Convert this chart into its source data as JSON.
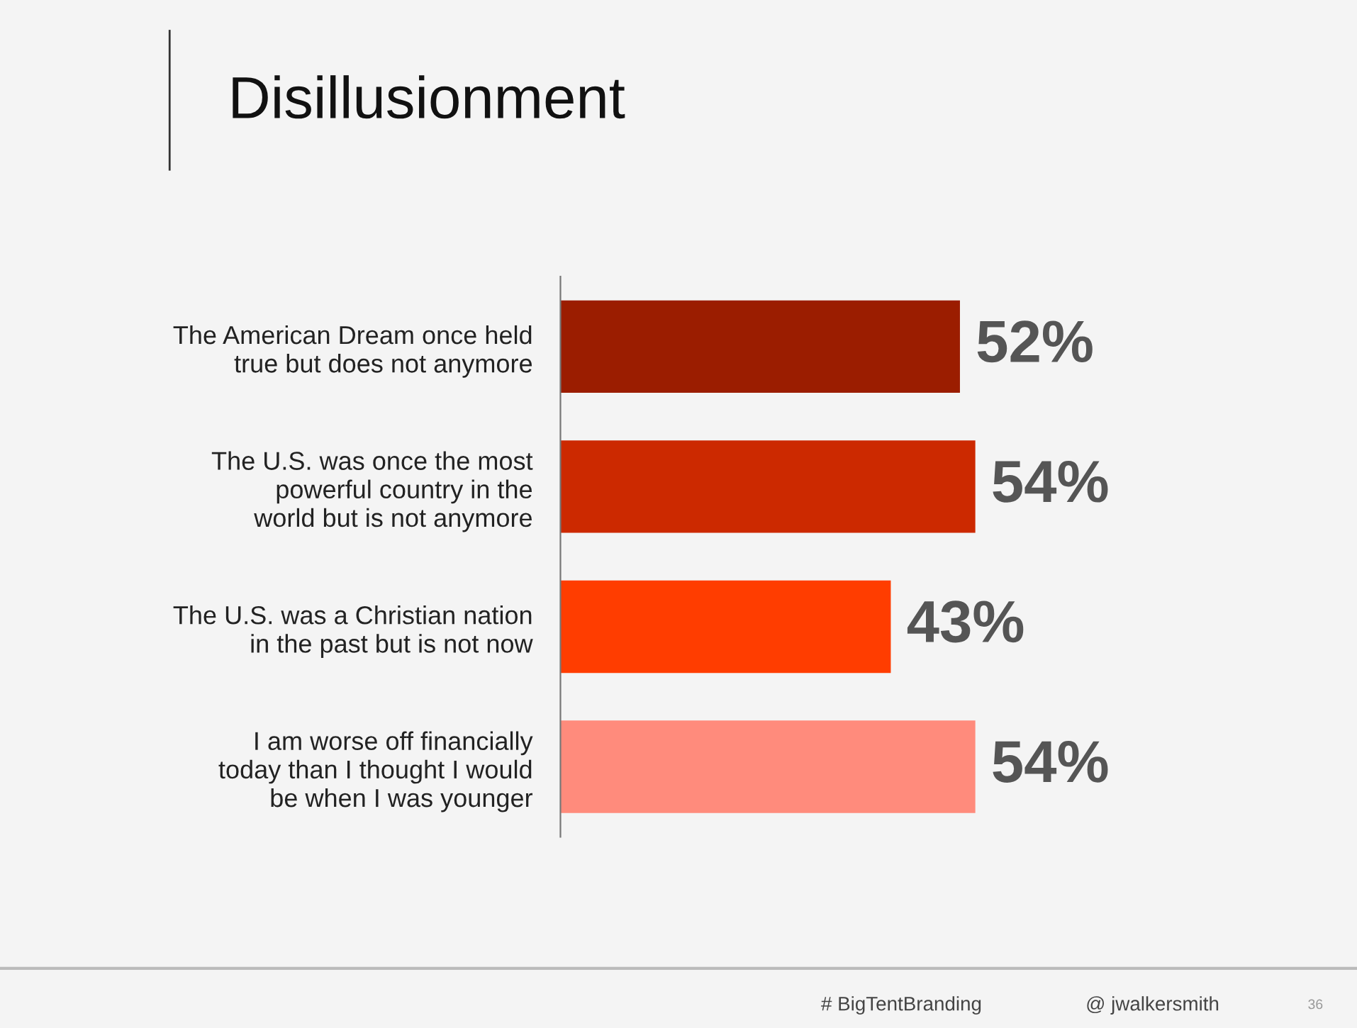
{
  "chart_data": {
    "type": "bar",
    "orientation": "horizontal",
    "title": "Disillusionment",
    "categories": [
      "The American Dream once held\ntrue but does not anymore",
      "The U.S. was once the most\npowerful country in the\nworld but is not anymore",
      "The U.S. was a Christian nation\nin the past but is not now",
      "I am worse off financially\ntoday than I thought I would\nbe when I was younger"
    ],
    "values": [
      52,
      54,
      43,
      54
    ],
    "colors": [
      "#9b1d00",
      "#cc2900",
      "#ff3d00",
      "#ff8b7c"
    ],
    "value_labels": [
      "52%",
      "54%",
      "43%",
      "54%"
    ],
    "annotations": [
      "# BigTentBranding",
      "@ jwalkersmith",
      "36"
    ]
  }
}
